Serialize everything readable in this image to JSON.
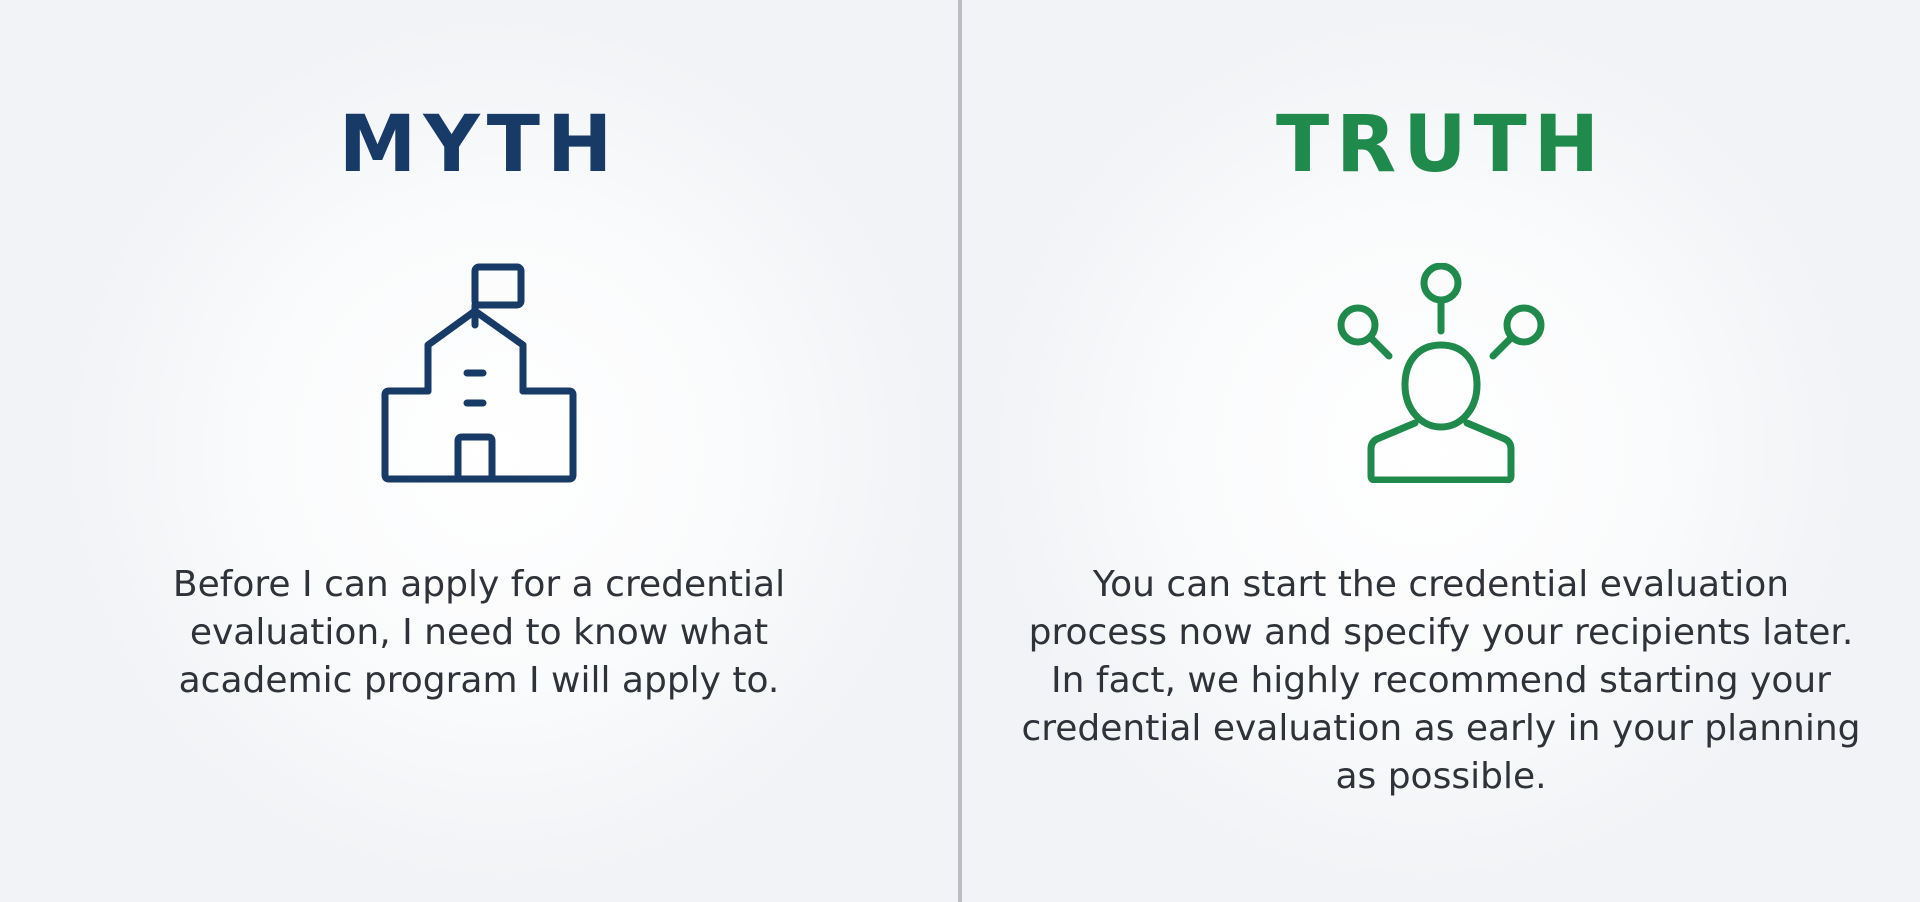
{
  "myth": {
    "heading": "MYTH",
    "icon": "school-building-icon",
    "text": "Before I can apply for a credential evaluation, I need to know what academic program I will apply to.",
    "color": "#173a67"
  },
  "truth": {
    "heading": "TRUTH",
    "icon": "person-with-options-icon",
    "text": "You can start the credential evaluation process now and specify your recipients later. In fact, we highly recommend starting your credential evaluation as early in your planning as possible.",
    "color": "#1f8a4c"
  },
  "divider_color": "#b9bcc1"
}
